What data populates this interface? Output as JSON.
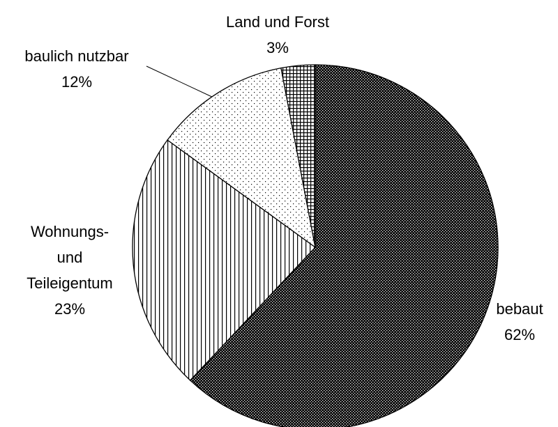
{
  "chart_data": {
    "type": "pie",
    "categories": [
      "bebaut",
      "Wohnungs- und Teileigentum",
      "baulich nutzbar",
      "Land und Forst"
    ],
    "values": [
      62,
      23,
      12,
      3
    ],
    "value_labels": [
      "62%",
      "23%",
      "12%",
      "3%"
    ]
  }
}
